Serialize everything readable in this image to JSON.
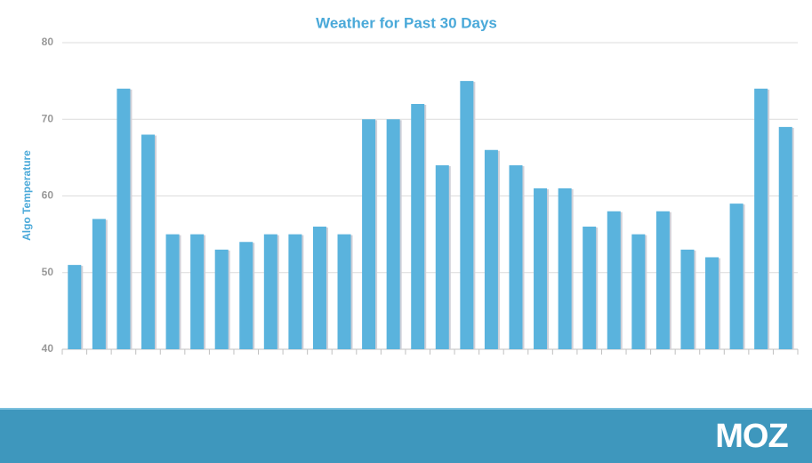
{
  "chart_data": {
    "type": "bar",
    "title": "Weather for Past 30 Days",
    "y_label": "Algo Temperature",
    "categories": [
      null,
      null,
      null,
      null,
      null,
      null,
      null,
      null,
      null,
      null,
      null,
      null,
      null,
      null,
      null,
      null,
      null,
      null,
      null,
      null,
      null,
      null,
      null,
      null,
      null,
      null,
      null,
      null,
      null,
      null
    ],
    "values": [
      51,
      57,
      74,
      68,
      55,
      55,
      53,
      54,
      55,
      55,
      56,
      55,
      70,
      70,
      72,
      64,
      75,
      66,
      64,
      61,
      61,
      56,
      58,
      55,
      58,
      53,
      52,
      59,
      74,
      69
    ],
    "color": "#5ab3dd",
    "ylim": [
      40,
      80
    ],
    "yticks": [
      40,
      50,
      60,
      70,
      80
    ],
    "grid": true
  },
  "footer": {
    "logo": "MOZ"
  }
}
